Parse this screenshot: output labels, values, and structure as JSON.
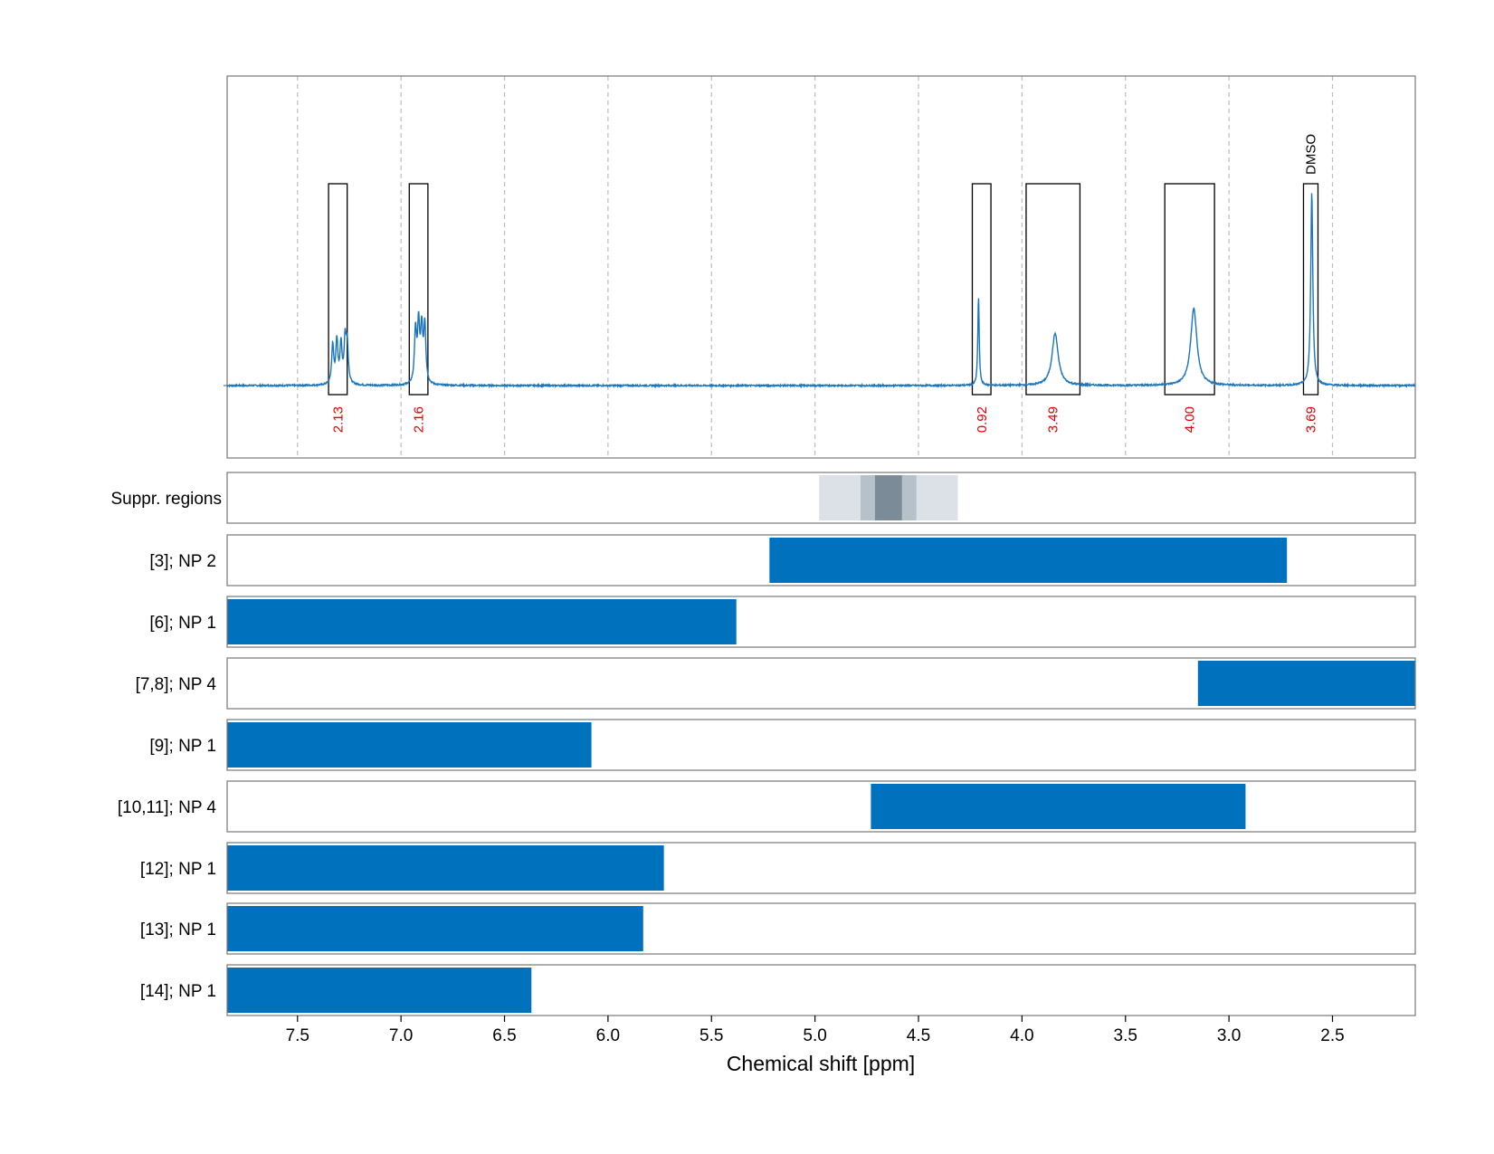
{
  "chart_data": {
    "type": "nmr-spectrum-with-range-bars",
    "xlabel": "Chemical shift [ppm]",
    "x_axis": {
      "reversed": true,
      "min": 2.1,
      "max": 7.84,
      "ticks": [
        7.5,
        7.0,
        6.5,
        6.0,
        5.5,
        5.0,
        4.5,
        4.0,
        3.5,
        3.0,
        2.5
      ],
      "tick_labels": [
        "7.5",
        "7.0",
        "6.5",
        "6.0",
        "5.5",
        "5.0",
        "4.5",
        "4.0",
        "3.5",
        "3.0",
        "2.5"
      ]
    },
    "grid": "vertical dashed",
    "line_color": "#1a75bc",
    "bar_color": "#0071bd",
    "integral_color": "#e00000",
    "spectrum_peaks": [
      {
        "center": 7.29,
        "height": 0.22,
        "width": 0.006,
        "multiplet": [
          7.33,
          7.31,
          7.29,
          7.27,
          7.26
        ]
      },
      {
        "center": 6.91,
        "height": 0.3,
        "width": 0.006,
        "multiplet": [
          6.93,
          6.915,
          6.9,
          6.885
        ]
      },
      {
        "center": 4.21,
        "height": 0.46,
        "width": 0.004
      },
      {
        "center": 3.84,
        "height": 0.27,
        "width": 0.018
      },
      {
        "center": 3.17,
        "height": 0.4,
        "width": 0.018
      },
      {
        "center": 2.6,
        "height": 1.0,
        "width": 0.006
      }
    ],
    "integration_regions": [
      {
        "from": 7.35,
        "to": 7.26,
        "integral": "2.13",
        "label": ""
      },
      {
        "from": 6.96,
        "to": 6.87,
        "integral": "2.16",
        "label": ""
      },
      {
        "from": 4.24,
        "to": 4.15,
        "integral": "0.92",
        "label": ""
      },
      {
        "from": 3.98,
        "to": 3.72,
        "integral": "3.49",
        "label": ""
      },
      {
        "from": 3.31,
        "to": 3.07,
        "integral": "4.00",
        "label": ""
      },
      {
        "from": 2.64,
        "to": 2.57,
        "integral": "3.69",
        "label": "DMSO"
      }
    ],
    "suppression": {
      "label": "Suppr. regions",
      "bands": [
        {
          "from": 4.98,
          "to": 4.31,
          "color": "#dbe1e7"
        },
        {
          "from": 4.78,
          "to": 4.51,
          "color": "#b6c1ca"
        },
        {
          "from": 4.71,
          "to": 4.58,
          "color": "#7b8b97"
        }
      ]
    },
    "range_rows": [
      {
        "label": "[3]; NP 2",
        "from": 5.22,
        "to": 2.72
      },
      {
        "label": "[6]; NP 1",
        "from": 7.84,
        "to": 5.38
      },
      {
        "label": "[7,8]; NP 4",
        "from": 3.15,
        "to": 2.1
      },
      {
        "label": "[9]; NP 1",
        "from": 7.84,
        "to": 6.08
      },
      {
        "label": "[10,11]; NP 4",
        "from": 4.73,
        "to": 2.92
      },
      {
        "label": "[12]; NP 1",
        "from": 7.84,
        "to": 5.73
      },
      {
        "label": "[13]; NP 1",
        "from": 7.84,
        "to": 5.83
      },
      {
        "label": "[14]; NP 1",
        "from": 7.84,
        "to": 6.37
      }
    ]
  }
}
